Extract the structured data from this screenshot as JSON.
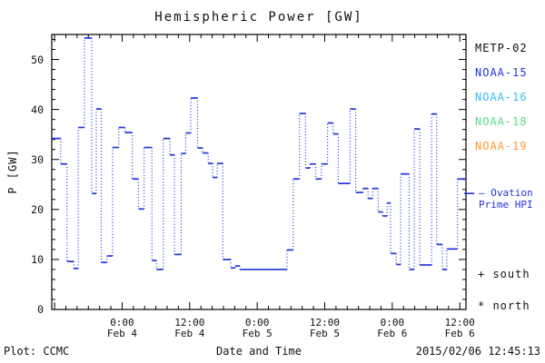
{
  "title": "Hemispheric Power [GW]",
  "axes": {
    "ylabel": "P [GW]",
    "xlabel": "Date and Time",
    "y_major_ticks": [
      0,
      10,
      20,
      30,
      40,
      50
    ],
    "y_minor_step": 2,
    "ylim": [
      0,
      55
    ],
    "xlim_hours": [
      11.5,
      85.1
    ],
    "x_hours_reference": "hours after Feb 3 00:00 shown on axis",
    "x_minor_step_hours": 2,
    "x_major_labels": [
      {
        "t": 24,
        "time": "0:00",
        "date": "Feb 4"
      },
      {
        "t": 36,
        "time": "12:00",
        "date": "Feb 4"
      },
      {
        "t": 48,
        "time": "0:00",
        "date": "Feb 5"
      },
      {
        "t": 60,
        "time": "12:00",
        "date": "Feb 5"
      },
      {
        "t": 72,
        "time": "0:00",
        "date": "Feb 6"
      },
      {
        "t": 84,
        "time": "12:00",
        "date": "Feb 6"
      }
    ]
  },
  "legend": {
    "items": [
      {
        "label": "METP-02",
        "color": "#111111"
      },
      {
        "label": "NOAA-15",
        "color": "#2233dd"
      },
      {
        "label": "NOAA-16",
        "color": "#33bbff"
      },
      {
        "label": "NOAA-18",
        "color": "#55dd88"
      },
      {
        "label": "NOAA-19",
        "color": "#ff9933"
      }
    ]
  },
  "annotations": {
    "ovation_line1": "– Ovation",
    "ovation_line2": "Prime HPI",
    "ovation_pointer_gw": 23.2,
    "south": "+ south",
    "north": "* north"
  },
  "footer": {
    "left": "Plot: CCMC",
    "right": "2015/02/06 12:45:13"
  },
  "colors": {
    "curve": "#2233dd",
    "axis": "#000000"
  },
  "chart_data": {
    "type": "step-line",
    "title": "Hemispheric Power [GW]",
    "xlabel": "Date and Time",
    "ylabel": "P [GW]",
    "ylim": [
      0,
      55
    ],
    "grid": false,
    "legend_position": "right",
    "series": [
      {
        "name": "Ovation Prime HPI",
        "color": "#2233dd",
        "style": "dotted-step",
        "x_hours": [
          11.5,
          13.1,
          14.2,
          15.4,
          16.2,
          17.3,
          18.6,
          19.4,
          20.3,
          21.3,
          22.3,
          23.4,
          24.5,
          25.8,
          26.9,
          27.9,
          29.3,
          30.1,
          31.3,
          32.5,
          33.3,
          34.5,
          35.3,
          36.2,
          37.4,
          38.3,
          39.3,
          40.1,
          40.9,
          41.9,
          43.3,
          44.1,
          44.9,
          53.3,
          54.4,
          55.5,
          56.6,
          57.4,
          58.4,
          59.4,
          60.5,
          61.5,
          62.4,
          64.5,
          65.5,
          66.8,
          67.7,
          68.5,
          69.5,
          70.3,
          71.1,
          71.7,
          72.7,
          73.5,
          75.0,
          75.9,
          76.9,
          79.0,
          79.9,
          80.9,
          81.7,
          83.6,
          85.1
        ],
        "values": [
          34.2,
          29.1,
          9.6,
          8.2,
          36.4,
          54.3,
          23.2,
          40.1,
          9.4,
          10.7,
          32.4,
          36.4,
          35.4,
          26.1,
          20.1,
          32.4,
          9.8,
          8.0,
          34.2,
          30.9,
          11.0,
          31.2,
          35.3,
          42.3,
          32.3,
          31.3,
          29.2,
          26.4,
          29.2,
          10.0,
          8.3,
          8.7,
          8.0,
          11.9,
          26.1,
          39.2,
          28.3,
          29.1,
          26.1,
          29.1,
          37.3,
          35.1,
          25.2,
          40.1,
          23.4,
          24.2,
          22.2,
          24.2,
          19.5,
          18.7,
          21.3,
          11.2,
          9.0,
          27.1,
          8.0,
          36.1,
          8.9,
          39.1,
          13.0,
          8.0,
          12.1,
          26.1,
          26.1
        ]
      }
    ]
  }
}
